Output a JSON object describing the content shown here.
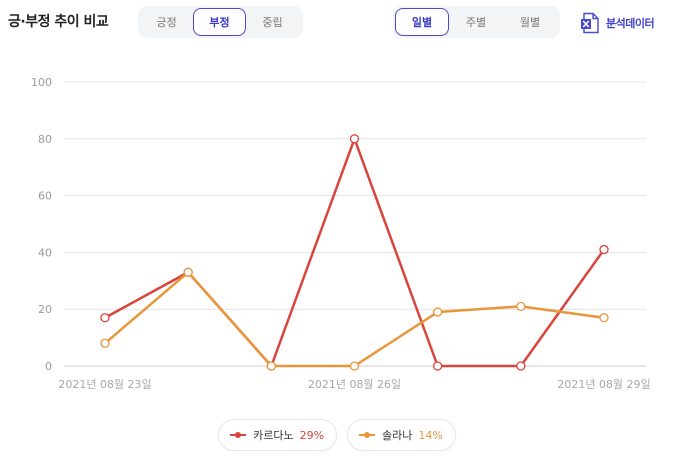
{
  "header": {
    "title": "긍·부정 추이 비교",
    "sentiment_tabs": [
      {
        "label": "긍정",
        "active": false
      },
      {
        "label": "부정",
        "active": true
      },
      {
        "label": "중립",
        "active": false
      }
    ],
    "period_tabs": [
      {
        "label": "일별",
        "active": true
      },
      {
        "label": "주별",
        "active": false
      },
      {
        "label": "월별",
        "active": false
      }
    ],
    "export_label": "분석데이터",
    "export_icon": "excel-file-icon"
  },
  "colors": {
    "accent": "#4a4ad1",
    "series_1": "#d9453c",
    "series_2": "#e8963a",
    "grid": "#e3e3e3"
  },
  "chart_data": {
    "type": "line",
    "x": [
      "2021-08-23",
      "2021-08-24",
      "2021-08-25",
      "2021-08-26",
      "2021-08-27",
      "2021-08-28",
      "2021-08-29"
    ],
    "x_tick_labels": [
      "2021년 08월 23일",
      "2021년 08월 26일",
      "2021년 08월 29일"
    ],
    "y_ticks": [
      0,
      20,
      40,
      60,
      80,
      100
    ],
    "ylim": [
      0,
      100
    ],
    "grid": true,
    "legend_position": "bottom-center",
    "series": [
      {
        "name": "카르다노",
        "percent": "29%",
        "color": "#d9453c",
        "values": [
          17,
          33,
          0,
          80,
          0,
          0,
          41
        ]
      },
      {
        "name": "솔라나",
        "percent": "14%",
        "color": "#e8963a",
        "values": [
          8,
          33,
          0,
          0,
          19,
          21,
          17
        ]
      }
    ]
  }
}
